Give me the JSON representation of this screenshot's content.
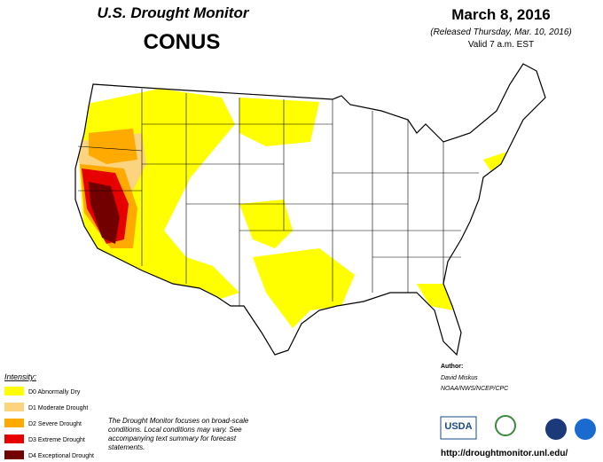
{
  "header": {
    "title": "U.S. Drought Monitor",
    "region": "CONUS",
    "date": "March 8, 2016",
    "released": "(Released Thursday, Mar. 10, 2016)",
    "valid": "Valid 7 a.m. EST"
  },
  "legend": {
    "title": "Intensity:",
    "items": [
      "D0 Abnormally Dry",
      "D1 Moderate Drought",
      "D2 Severe Drought",
      "D3 Extreme Drought",
      "D4 Exceptional Drought"
    ]
  },
  "note": "The Drought Monitor focuses on broad-scale conditions. Local conditions may vary. See accompanying text summary for forecast statements.",
  "author": {
    "label": "Author:",
    "name": "David Miskus",
    "org": "NOAA/NWS/NCEP/CPC"
  },
  "logos": {
    "usda": "USDA"
  },
  "url": "http://droughtmonitor.unl.edu/"
}
